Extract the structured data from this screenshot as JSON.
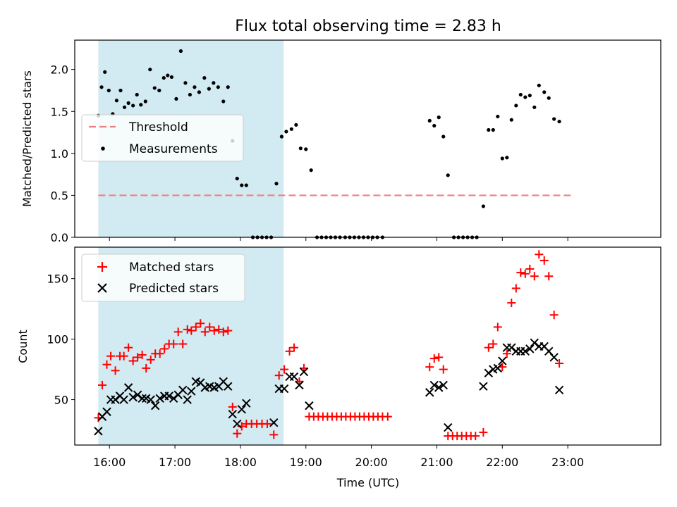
{
  "chart_data": {
    "type": "scatter",
    "title": "Flux total observing time = 2.83 h",
    "xlabel": "Time (UTC)",
    "x_range_hours": [
      15.47,
      24.42
    ],
    "x_ticks": [
      {
        "h": 16,
        "label": "16:00"
      },
      {
        "h": 17,
        "label": "17:00"
      },
      {
        "h": 18,
        "label": "18:00"
      },
      {
        "h": 19,
        "label": "19:00"
      },
      {
        "h": 20,
        "label": "20:00"
      },
      {
        "h": 21,
        "label": "21:00"
      },
      {
        "h": 22,
        "label": "22:00"
      },
      {
        "h": 23,
        "label": "23:00"
      }
    ],
    "highlight_span_hours": [
      15.83,
      18.66
    ],
    "highlight_color": "#add8e6",
    "top_panel": {
      "ylabel": "Matched/Predicted stars",
      "ylim": [
        0,
        2.35
      ],
      "yticks": [
        "0.0",
        "0.5",
        "1.0",
        "1.5",
        "2.0"
      ],
      "threshold": {
        "name": "Threshold",
        "value": 0.5,
        "x_range": [
          15.83,
          23.08
        ],
        "color": "#f08080"
      },
      "measurements_name": "Measurements",
      "legend_position": "center-left",
      "measurements": [
        [
          15.83,
          1.45
        ],
        [
          15.88,
          1.79
        ],
        [
          15.93,
          1.97
        ],
        [
          15.99,
          1.75
        ],
        [
          16.05,
          1.47
        ],
        [
          16.11,
          1.63
        ],
        [
          16.17,
          1.75
        ],
        [
          16.23,
          1.55
        ],
        [
          16.29,
          1.6
        ],
        [
          16.36,
          1.57
        ],
        [
          16.42,
          1.7
        ],
        [
          16.48,
          1.58
        ],
        [
          16.55,
          1.62
        ],
        [
          16.62,
          2.0
        ],
        [
          16.69,
          1.78
        ],
        [
          16.76,
          1.75
        ],
        [
          16.83,
          1.9
        ],
        [
          16.89,
          1.93
        ],
        [
          16.95,
          1.91
        ],
        [
          17.02,
          1.65
        ],
        [
          17.09,
          2.22
        ],
        [
          17.16,
          1.84
        ],
        [
          17.23,
          1.7
        ],
        [
          17.3,
          1.79
        ],
        [
          17.37,
          1.73
        ],
        [
          17.45,
          1.9
        ],
        [
          17.52,
          1.77
        ],
        [
          17.59,
          1.84
        ],
        [
          17.66,
          1.79
        ],
        [
          17.74,
          1.62
        ],
        [
          17.81,
          1.79
        ],
        [
          17.88,
          1.15
        ],
        [
          17.95,
          0.7
        ],
        [
          18.02,
          0.62
        ],
        [
          18.09,
          0.62
        ],
        [
          18.19,
          0.0
        ],
        [
          18.26,
          0.0
        ],
        [
          18.33,
          0.0
        ],
        [
          18.4,
          0.0
        ],
        [
          18.47,
          0.0
        ],
        [
          18.55,
          0.64
        ],
        [
          18.63,
          1.2
        ],
        [
          18.7,
          1.26
        ],
        [
          18.78,
          1.29
        ],
        [
          18.85,
          1.34
        ],
        [
          18.92,
          1.06
        ],
        [
          19.0,
          1.05
        ],
        [
          19.08,
          0.8
        ],
        [
          19.17,
          0.0
        ],
        [
          19.24,
          0.0
        ],
        [
          19.31,
          0.0
        ],
        [
          19.38,
          0.0
        ],
        [
          19.45,
          0.0
        ],
        [
          19.52,
          0.0
        ],
        [
          19.6,
          0.0
        ],
        [
          19.67,
          0.0
        ],
        [
          19.74,
          0.0
        ],
        [
          19.81,
          0.0
        ],
        [
          19.88,
          0.0
        ],
        [
          19.95,
          0.0
        ],
        [
          20.02,
          0.0
        ],
        [
          20.09,
          0.0
        ],
        [
          20.17,
          0.0
        ],
        [
          20.89,
          1.39
        ],
        [
          20.96,
          1.33
        ],
        [
          21.03,
          1.43
        ],
        [
          21.1,
          1.2
        ],
        [
          21.17,
          0.74
        ],
        [
          21.26,
          0.0
        ],
        [
          21.33,
          0.0
        ],
        [
          21.4,
          0.0
        ],
        [
          21.47,
          0.0
        ],
        [
          21.54,
          0.0
        ],
        [
          21.61,
          0.0
        ],
        [
          21.71,
          0.37
        ],
        [
          21.79,
          1.28
        ],
        [
          21.86,
          1.28
        ],
        [
          21.93,
          1.44
        ],
        [
          22.0,
          0.94
        ],
        [
          22.07,
          0.95
        ],
        [
          22.14,
          1.4
        ],
        [
          22.21,
          1.57
        ],
        [
          22.28,
          1.7
        ],
        [
          22.35,
          1.67
        ],
        [
          22.42,
          1.69
        ],
        [
          22.49,
          1.55
        ],
        [
          22.56,
          1.81
        ],
        [
          22.64,
          1.73
        ],
        [
          22.71,
          1.66
        ],
        [
          22.79,
          1.41
        ],
        [
          22.87,
          1.38
        ]
      ]
    },
    "bottom_panel": {
      "ylabel": "Count",
      "ylim": [
        12.5,
        176
      ],
      "yticks": [
        "50",
        "100",
        "150"
      ],
      "legend_position": "top-left",
      "series": [
        {
          "name": "Matched stars",
          "color": "#ff0000",
          "marker": "plus",
          "points": [
            [
              15.83,
              35
            ],
            [
              15.89,
              62
            ],
            [
              15.96,
              79
            ],
            [
              16.02,
              86
            ],
            [
              16.09,
              74
            ],
            [
              16.16,
              86
            ],
            [
              16.22,
              86
            ],
            [
              16.29,
              93
            ],
            [
              16.36,
              82
            ],
            [
              16.43,
              85
            ],
            [
              16.5,
              87
            ],
            [
              16.56,
              76
            ],
            [
              16.63,
              83
            ],
            [
              16.7,
              88
            ],
            [
              16.77,
              88
            ],
            [
              16.84,
              92
            ],
            [
              16.91,
              96
            ],
            [
              16.98,
              96
            ],
            [
              17.05,
              106
            ],
            [
              17.12,
              96
            ],
            [
              17.19,
              108
            ],
            [
              17.25,
              107
            ],
            [
              17.32,
              110
            ],
            [
              17.39,
              113
            ],
            [
              17.46,
              106
            ],
            [
              17.53,
              110
            ],
            [
              17.6,
              107
            ],
            [
              17.67,
              108
            ],
            [
              17.74,
              106
            ],
            [
              17.81,
              107
            ],
            [
              17.88,
              44
            ],
            [
              17.95,
              22
            ],
            [
              18.02,
              28
            ],
            [
              18.09,
              30
            ],
            [
              18.17,
              30
            ],
            [
              18.25,
              30
            ],
            [
              18.33,
              30
            ],
            [
              18.41,
              30
            ],
            [
              18.51,
              21
            ],
            [
              18.59,
              70
            ],
            [
              18.67,
              75
            ],
            [
              18.75,
              90
            ],
            [
              18.82,
              93
            ],
            [
              18.9,
              65
            ],
            [
              18.97,
              76
            ],
            [
              19.05,
              36
            ],
            [
              19.12,
              36
            ],
            [
              19.19,
              36
            ],
            [
              19.26,
              36
            ],
            [
              19.33,
              36
            ],
            [
              19.4,
              36
            ],
            [
              19.47,
              36
            ],
            [
              19.54,
              36
            ],
            [
              19.61,
              36
            ],
            [
              19.68,
              36
            ],
            [
              19.75,
              36
            ],
            [
              19.82,
              36
            ],
            [
              19.89,
              36
            ],
            [
              19.96,
              36
            ],
            [
              20.03,
              36
            ],
            [
              20.1,
              36
            ],
            [
              20.17,
              36
            ],
            [
              20.25,
              36
            ],
            [
              20.89,
              77
            ],
            [
              20.96,
              84
            ],
            [
              21.03,
              85
            ],
            [
              21.1,
              75
            ],
            [
              21.17,
              20
            ],
            [
              21.24,
              20
            ],
            [
              21.31,
              20
            ],
            [
              21.38,
              20
            ],
            [
              21.45,
              20
            ],
            [
              21.52,
              20
            ],
            [
              21.59,
              20
            ],
            [
              21.71,
              23
            ],
            [
              21.79,
              93
            ],
            [
              21.86,
              96
            ],
            [
              21.93,
              110
            ],
            [
              22.0,
              77
            ],
            [
              22.07,
              88
            ],
            [
              22.14,
              130
            ],
            [
              22.21,
              142
            ],
            [
              22.28,
              155
            ],
            [
              22.35,
              154
            ],
            [
              22.42,
              158
            ],
            [
              22.49,
              152
            ],
            [
              22.56,
              170
            ],
            [
              22.64,
              165
            ],
            [
              22.71,
              152
            ],
            [
              22.79,
              120
            ],
            [
              22.87,
              80
            ]
          ]
        },
        {
          "name": "Predicted stars",
          "color": "#000000",
          "marker": "x",
          "points": [
            [
              15.83,
              24
            ],
            [
              15.89,
              36
            ],
            [
              15.96,
              40
            ],
            [
              16.02,
              50
            ],
            [
              16.09,
              50
            ],
            [
              16.16,
              53
            ],
            [
              16.22,
              50
            ],
            [
              16.29,
              60
            ],
            [
              16.36,
              52
            ],
            [
              16.43,
              54
            ],
            [
              16.5,
              51
            ],
            [
              16.56,
              51
            ],
            [
              16.63,
              50
            ],
            [
              16.7,
              45
            ],
            [
              16.77,
              51
            ],
            [
              16.84,
              53
            ],
            [
              16.91,
              53
            ],
            [
              16.98,
              51
            ],
            [
              17.05,
              54
            ],
            [
              17.12,
              58
            ],
            [
              17.19,
              50
            ],
            [
              17.25,
              57
            ],
            [
              17.32,
              65
            ],
            [
              17.39,
              64
            ],
            [
              17.46,
              60
            ],
            [
              17.53,
              61
            ],
            [
              17.6,
              60
            ],
            [
              17.67,
              61
            ],
            [
              17.74,
              65
            ],
            [
              17.81,
              61
            ],
            [
              17.88,
              38
            ],
            [
              17.95,
              30
            ],
            [
              18.02,
              42
            ],
            [
              18.09,
              47
            ],
            [
              18.51,
              31
            ],
            [
              18.59,
              59
            ],
            [
              18.67,
              59
            ],
            [
              18.75,
              69
            ],
            [
              18.82,
              69
            ],
            [
              18.9,
              62
            ],
            [
              18.97,
              73
            ],
            [
              19.05,
              45
            ],
            [
              20.89,
              56
            ],
            [
              20.96,
              62
            ],
            [
              21.03,
              60
            ],
            [
              21.1,
              62
            ],
            [
              21.17,
              27
            ],
            [
              21.71,
              61
            ],
            [
              21.79,
              72
            ],
            [
              21.86,
              75
            ],
            [
              21.93,
              76
            ],
            [
              22.0,
              82
            ],
            [
              22.07,
              93
            ],
            [
              22.14,
              93
            ],
            [
              22.21,
              90
            ],
            [
              22.28,
              90
            ],
            [
              22.35,
              90
            ],
            [
              22.42,
              92
            ],
            [
              22.49,
              97
            ],
            [
              22.56,
              94
            ],
            [
              22.64,
              94
            ],
            [
              22.71,
              90
            ],
            [
              22.79,
              85
            ],
            [
              22.87,
              58
            ]
          ]
        }
      ]
    }
  }
}
